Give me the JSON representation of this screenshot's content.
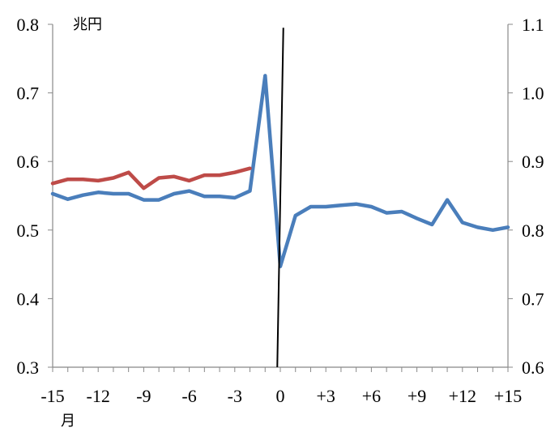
{
  "chart_data": {
    "type": "line",
    "left_axis_unit": "兆円",
    "x_unit": "月",
    "x_range": [
      -15,
      15
    ],
    "x_ticks": [
      {
        "value": -15,
        "label": "-15"
      },
      {
        "value": -12,
        "label": "-12"
      },
      {
        "value": -9,
        "label": "-9"
      },
      {
        "value": -6,
        "label": "-6"
      },
      {
        "value": -3,
        "label": "-3"
      },
      {
        "value": 0,
        "label": "0"
      },
      {
        "value": 3,
        "label": "+3"
      },
      {
        "value": 6,
        "label": "+6"
      },
      {
        "value": 9,
        "label": "+9"
      },
      {
        "value": 12,
        "label": "+12"
      },
      {
        "value": 15,
        "label": "+15"
      }
    ],
    "y_left": {
      "range": [
        0.3,
        0.8
      ],
      "ticks": [
        {
          "value": 0.3,
          "label": "0.3"
        },
        {
          "value": 0.4,
          "label": "0.4"
        },
        {
          "value": 0.5,
          "label": "0.5"
        },
        {
          "value": 0.6,
          "label": "0.6"
        },
        {
          "value": 0.7,
          "label": "0.7"
        },
        {
          "value": 0.8,
          "label": "0.8"
        }
      ]
    },
    "y_right": {
      "range": [
        0.6,
        1.1
      ],
      "ticks": [
        {
          "value": 0.6,
          "label": "0.6"
        },
        {
          "value": 0.7,
          "label": "0.7"
        },
        {
          "value": 0.8,
          "label": "0.8"
        },
        {
          "value": 0.9,
          "label": "0.9"
        },
        {
          "value": 1.0,
          "label": "1.0"
        },
        {
          "value": 1.1,
          "label": "1.1"
        }
      ]
    },
    "series": [
      {
        "color": "#4a7ebb",
        "axis": "left",
        "x": [
          -15,
          -14,
          -13,
          -12,
          -11,
          -10,
          -9,
          -8,
          -7,
          -6,
          -5,
          -4,
          -3,
          -2,
          -1,
          0,
          1,
          2,
          3,
          4,
          5,
          6,
          7,
          8,
          9,
          10,
          11,
          12,
          13,
          14,
          15
        ],
        "values": [
          0.553,
          0.545,
          0.551,
          0.555,
          0.553,
          0.553,
          0.544,
          0.544,
          0.553,
          0.557,
          0.549,
          0.549,
          0.547,
          0.557,
          0.725,
          0.447,
          0.521,
          0.534,
          0.534,
          0.536,
          0.538,
          0.534,
          0.525,
          0.527,
          0.517,
          0.508,
          0.544,
          0.511,
          0.504,
          0.5,
          0.504
        ]
      },
      {
        "color": "#be4b48",
        "axis": "left",
        "x": [
          -15,
          -14,
          -13,
          -12,
          -11,
          -10,
          -9,
          -8,
          -7,
          -6,
          -5,
          -4,
          -3,
          -2
        ],
        "values": [
          0.568,
          0.574,
          0.574,
          0.572,
          0.576,
          0.584,
          0.561,
          0.576,
          0.578,
          0.572,
          0.58,
          0.58,
          0.584,
          0.59
        ]
      }
    ],
    "marker_line": {
      "color": "#000000",
      "x_bottom": -0.2,
      "x_top": 0.2,
      "y_bottom": 0.3,
      "y_top": 0.795
    },
    "grid": false,
    "legend": "none"
  }
}
